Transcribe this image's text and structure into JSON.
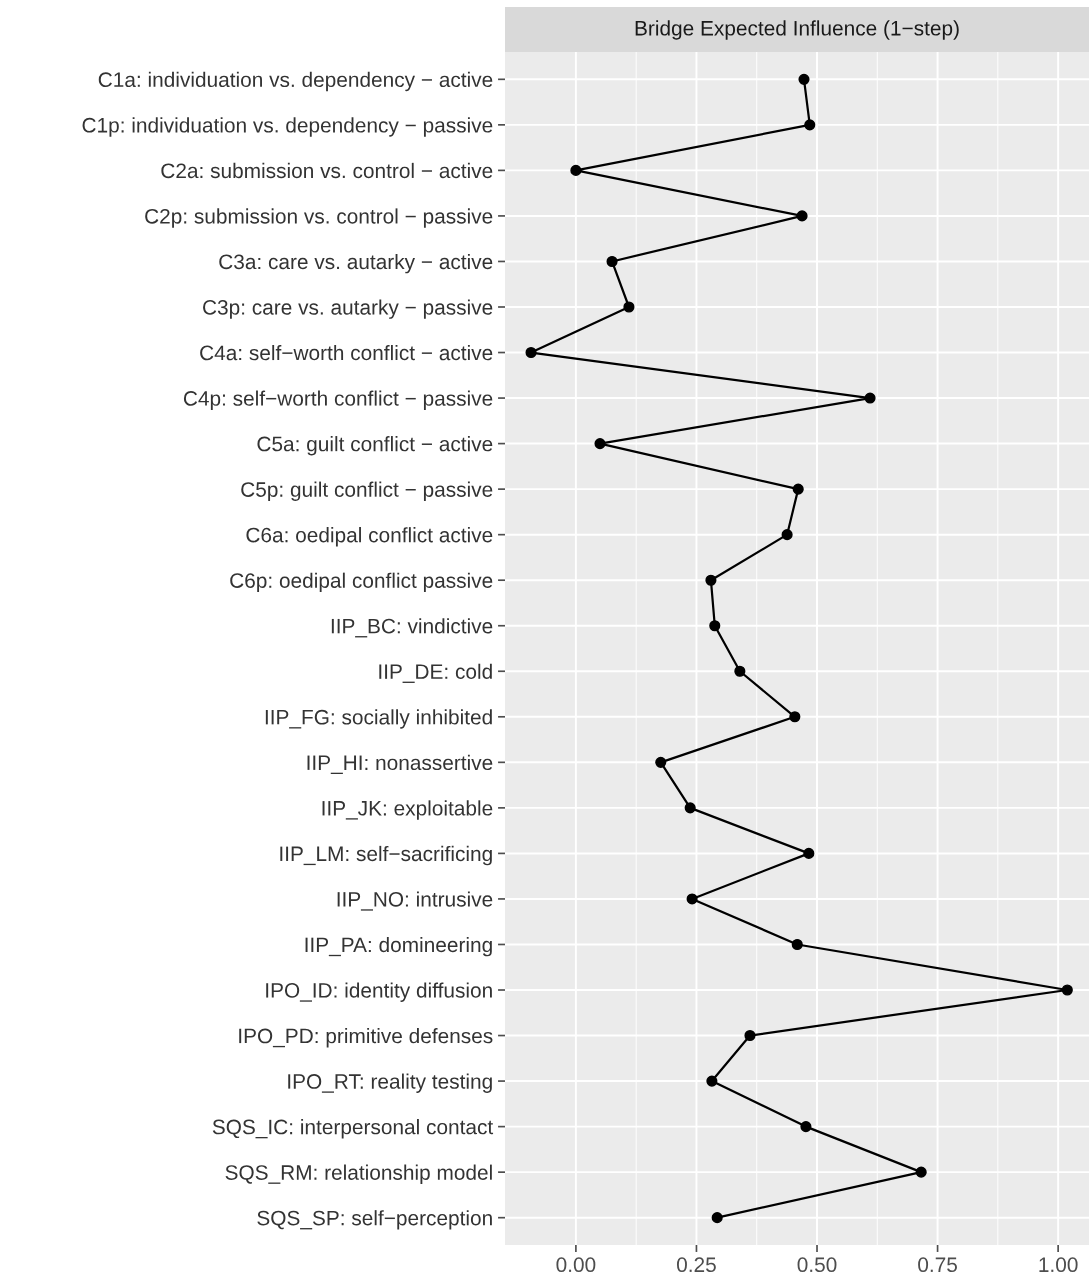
{
  "chart_data": {
    "type": "line",
    "title": "Bridge Expected Influence (1−step)",
    "orientation": "horizontal",
    "categories": [
      "C1a: individuation vs. dependency − active",
      "C1p: individuation vs. dependency − passive",
      "C2a: submission vs. control − active",
      "C2p: submission vs. control − passive",
      "C3a: care vs. autarky − active",
      "C3p: care vs. autarky − passive",
      "C4a: self−worth conflict − active",
      "C4p: self−worth conflict − passive",
      "C5a: guilt conflict − active",
      "C5p: guilt conflict − passive",
      "C6a: oedipal conflict active",
      "C6p: oedipal conflict passive",
      "IIP_BC: vindictive",
      "IIP_DE: cold",
      "IIP_FG: socially inhibited",
      "IIP_HI: nonassertive",
      "IIP_JK: exploitable",
      "IIP_LM: self−sacrificing",
      "IIP_NO: intrusive",
      "IIP_PA: domineering",
      "IPO_ID: identity diffusion",
      "IPO_PD: primitive defenses",
      "IPO_RT: reality testing",
      "SQS_IC: interpersonal contact",
      "SQS_RM: relationship model",
      "SQS_SP: self−perception"
    ],
    "series": [
      {
        "color": "#000000",
        "values": [
          0.473,
          0.485,
          0.0,
          0.469,
          0.075,
          0.11,
          -0.093,
          0.61,
          0.05,
          0.461,
          0.438,
          0.28,
          0.288,
          0.34,
          0.454,
          0.176,
          0.237,
          0.483,
          0.241,
          0.459,
          1.019,
          0.361,
          0.282,
          0.477,
          0.716,
          0.293
        ]
      }
    ],
    "xlim": [
      -0.147,
      1.064
    ],
    "xticks": [
      {
        "value": 0,
        "label": "0.00"
      },
      {
        "value": 0.25,
        "label": "0.25"
      },
      {
        "value": 0.5,
        "label": "0.50"
      },
      {
        "value": 0.75,
        "label": "0.75"
      },
      {
        "value": 1,
        "label": "1.00"
      }
    ],
    "grid": true,
    "marker": "circle",
    "line_style": "solid"
  }
}
